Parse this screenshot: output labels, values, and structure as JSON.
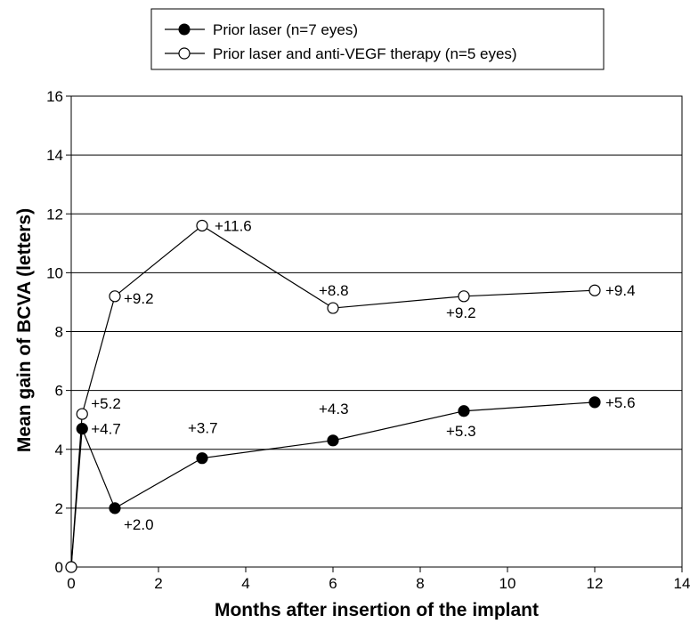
{
  "chart_data": {
    "type": "line",
    "xlabel": "Months after insertion of the implant",
    "ylabel": "Mean gain of BCVA (letters)",
    "xlim": [
      0,
      14
    ],
    "ylim": [
      0,
      16
    ],
    "x_ticks": [
      0,
      2,
      4,
      6,
      8,
      10,
      12,
      14
    ],
    "y_ticks": [
      0,
      2,
      4,
      6,
      8,
      10,
      12,
      14,
      16
    ],
    "grid": "horizontal",
    "legend_position": "top",
    "series": [
      {
        "name": "Prior laser (n=7 eyes)",
        "marker": "filled-circle",
        "color": "#000000",
        "points": [
          {
            "x": 0,
            "y": 0,
            "label": ""
          },
          {
            "x": 0.25,
            "y": 4.7,
            "label": "+4.7"
          },
          {
            "x": 1,
            "y": 2.0,
            "label": "+2.0"
          },
          {
            "x": 3,
            "y": 3.7,
            "label": "+3.7"
          },
          {
            "x": 6,
            "y": 4.3,
            "label": "+4.3"
          },
          {
            "x": 9,
            "y": 5.3,
            "label": "+5.3"
          },
          {
            "x": 12,
            "y": 5.6,
            "label": "+5.6"
          }
        ]
      },
      {
        "name": "Prior laser and anti-VEGF therapy (n=5 eyes)",
        "marker": "open-circle",
        "color": "#000000",
        "points": [
          {
            "x": 0,
            "y": 0,
            "label": ""
          },
          {
            "x": 0.25,
            "y": 5.2,
            "label": "+5.2"
          },
          {
            "x": 1,
            "y": 9.2,
            "label": "+9.2"
          },
          {
            "x": 3,
            "y": 11.6,
            "label": "+11.6"
          },
          {
            "x": 6,
            "y": 8.8,
            "label": "+8.8"
          },
          {
            "x": 9,
            "y": 9.2,
            "label": "+9.2"
          },
          {
            "x": 12,
            "y": 9.4,
            "label": "+9.4"
          }
        ]
      }
    ]
  }
}
